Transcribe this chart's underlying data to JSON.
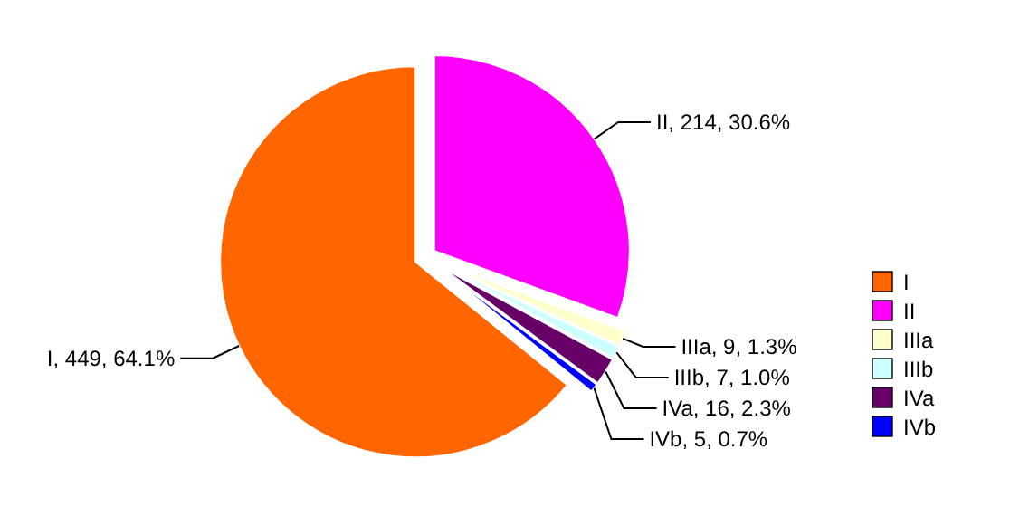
{
  "chart_data": {
    "type": "pie",
    "categories": [
      "I",
      "II",
      "IIIa",
      "IIIb",
      "IVa",
      "IVb"
    ],
    "values": [
      449,
      214,
      9,
      7,
      16,
      5
    ],
    "colors": [
      "#ff6600",
      "#ff00ff",
      "#ffffcc",
      "#ccffff",
      "#660066",
      "#0000ff"
    ],
    "value_labels": [
      "I, 449, 64.1%",
      "II, 214, 30.6%",
      "IIIa, 9, 1.3%",
      "IIIb, 7, 1.0%",
      "IVa, 16, 2.3%",
      "IVb, 5, 0.7%"
    ],
    "legend": "right"
  }
}
